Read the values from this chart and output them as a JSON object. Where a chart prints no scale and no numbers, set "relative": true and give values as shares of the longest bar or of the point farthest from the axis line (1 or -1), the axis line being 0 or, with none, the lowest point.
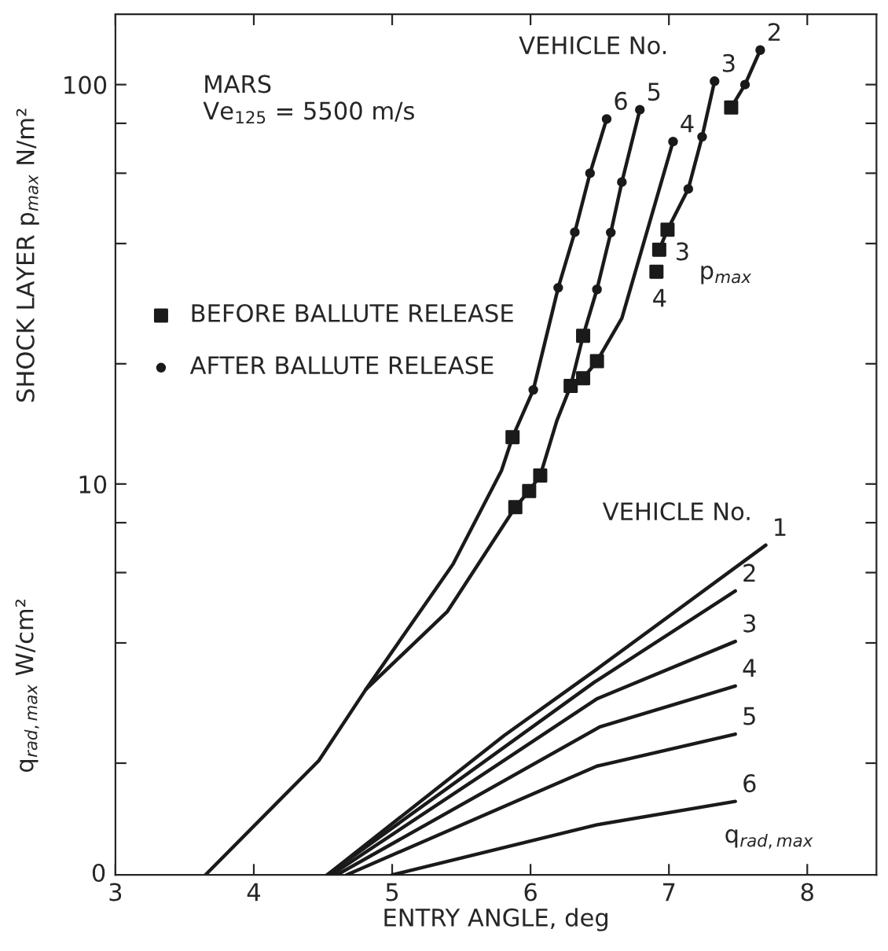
{
  "chart_data": [
    {
      "type": "line",
      "xlabel": "ENTRY ANGLE, deg",
      "ylabel": "SHOCK LAYER p$_{max}$ N/m²",
      "log": "y",
      "grid": false,
      "legend": "left",
      "xlim": [
        3,
        8.5
      ],
      "xticks": [
        3,
        4,
        5,
        6,
        7,
        8
      ],
      "ylim": [
        1.05,
        150
      ],
      "yticks": [
        {
          "value": 2,
          "label": null
        },
        {
          "value": 4,
          "label": null
        },
        {
          "value": 6,
          "label": null
        },
        {
          "value": 8,
          "label": null
        },
        10,
        {
          "value": 20,
          "label": null
        },
        {
          "value": 40,
          "label": null
        },
        {
          "value": 60,
          "label": null
        },
        {
          "value": 80,
          "label": null
        },
        100
      ],
      "annotations": [
        "MARS\nVe$_{125}$ = 5500 m/s",
        "VEHICLE No.",
        "p$_{max}$",
        "3",
        "4"
      ],
      "series": [
        {
          "name": "6",
          "type": "line",
          "marker": "none",
          "color": "#1a1a1a",
          "x": [
            3.65,
            4.47,
            4.81,
            5.44,
            5.79,
            5.87,
            6.02,
            6.2,
            6.32,
            6.43,
            6.55
          ],
          "values": [
            1.05,
            2.03,
            3.06,
            6.3,
            10.8,
            13.1,
            17.2,
            31,
            42.7,
            60,
            82
          ]
        },
        {
          "name": "5",
          "type": "line",
          "marker": "none",
          "color": "#1a1a1a",
          "x": [
            4.81,
            5.4,
            5.89,
            5.99,
            6.07,
            6.19,
            6.29,
            6.38,
            6.48,
            6.58,
            6.66,
            6.79
          ],
          "values": [
            3.06,
            4.8,
            8.75,
            9.6,
            10.5,
            14.4,
            17.6,
            23.5,
            30.7,
            42.6,
            57,
            86.5
          ]
        },
        {
          "name": "4",
          "type": "line",
          "marker": "none",
          "color": "#1a1a1a",
          "x": [
            6.29,
            6.38,
            6.48,
            6.66,
            7.03
          ],
          "values": [
            17.6,
            18.4,
            20.3,
            26,
            72
          ]
        },
        {
          "name": "3",
          "type": "line",
          "marker": "none",
          "color": "#1a1a1a",
          "x": [
            6.93,
            6.99,
            7.14,
            7.24,
            7.33
          ],
          "values": [
            38.6,
            43.3,
            54.8,
            74,
            102
          ]
        },
        {
          "name": "2",
          "type": "line",
          "marker": "none",
          "color": "#1a1a1a",
          "x": [
            7.45,
            7.55,
            7.66
          ],
          "values": [
            87.6,
            100,
            122
          ]
        },
        {
          "name": "BEFORE BALLUTE RELEASE",
          "type": "scatter",
          "marker": "square",
          "color": "#1a1a1a",
          "x": [
            5.87,
            5.89,
            5.99,
            6.07,
            6.29,
            6.38,
            6.38,
            6.48,
            6.91,
            6.93,
            6.99,
            7.45
          ],
          "values": [
            13.1,
            8.75,
            9.6,
            10.5,
            17.6,
            23.5,
            18.4,
            20.3,
            34,
            38.6,
            43.3,
            87.6
          ]
        },
        {
          "name": "AFTER BALLUTE RELEASE",
          "type": "scatter",
          "marker": "circle",
          "color": "#1a1a1a",
          "x": [
            6.02,
            6.2,
            6.32,
            6.43,
            6.55,
            6.48,
            6.58,
            6.66,
            6.79,
            7.03,
            7.14,
            7.24,
            7.33,
            7.55,
            7.66
          ],
          "values": [
            17.2,
            31,
            42.7,
            60,
            82,
            30.7,
            42.6,
            57,
            86.5,
            72,
            54.8,
            74,
            102,
            100,
            122
          ]
        }
      ]
    },
    {
      "type": "line",
      "relative": true,
      "ylabel": "q$_{rad,max}$ W/cm²",
      "xlim": [
        3,
        8.5
      ],
      "annotations": [
        "VEHICLE No.",
        "0",
        "q$_{rad,max}$"
      ],
      "series": [
        {
          "name": "1",
          "color": "#1a1a1a",
          "x": [
            4.53,
            5.81,
            6.46,
            7.7
          ],
          "values": [
            0,
            0.423,
            0.618,
            1.0
          ]
        },
        {
          "name": "2",
          "color": "#1a1a1a",
          "x": [
            4.53,
            6.46,
            7.48
          ],
          "values": [
            0,
            0.584,
            0.861
          ]
        },
        {
          "name": "3",
          "color": "#1a1a1a",
          "x": [
            4.56,
            6.48,
            7.48
          ],
          "values": [
            0,
            0.534,
            0.708
          ]
        },
        {
          "name": "4",
          "color": "#1a1a1a",
          "x": [
            4.6,
            6.5,
            7.48
          ],
          "values": [
            0,
            0.449,
            0.573
          ]
        },
        {
          "name": "5",
          "color": "#1a1a1a",
          "x": [
            4.67,
            6.48,
            7.48
          ],
          "values": [
            0,
            0.33,
            0.427
          ]
        },
        {
          "name": "6",
          "color": "#1a1a1a",
          "x": [
            5.0,
            6.48,
            7.48
          ],
          "values": [
            0,
            0.152,
            0.223
          ]
        }
      ]
    }
  ]
}
